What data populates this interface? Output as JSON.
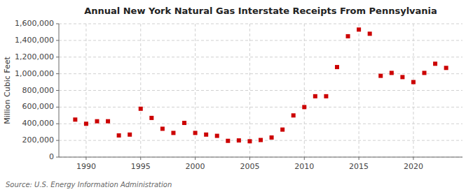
{
  "chart_data": {
    "type": "scatter",
    "title": "Annual New York Natural Gas Interstate Receipts From Pennsylvania",
    "ylabel": "Million Cubic Feet",
    "annotations": [
      "Source: U.S. Energy Information Administration"
    ],
    "x": [
      1989,
      1990,
      1991,
      1992,
      1993,
      1994,
      1995,
      1996,
      1997,
      1998,
      1999,
      2000,
      2001,
      2002,
      2003,
      2004,
      2005,
      2006,
      2007,
      2008,
      2009,
      2010,
      2011,
      2012,
      2013,
      2014,
      2015,
      2016,
      2017,
      2018,
      2019,
      2020,
      2021,
      2022,
      2023
    ],
    "values": [
      450000,
      400000,
      430000,
      430000,
      260000,
      270000,
      580000,
      470000,
      340000,
      290000,
      410000,
      290000,
      270000,
      255000,
      195000,
      200000,
      190000,
      205000,
      235000,
      330000,
      500000,
      600000,
      730000,
      730000,
      1080000,
      1450000,
      1530000,
      1480000,
      975000,
      1010000,
      960000,
      900000,
      1010000,
      1120000,
      1070000
    ],
    "color": "#cc0000",
    "marker": "square",
    "grid": true,
    "xlim": [
      1987.5,
      2024.5
    ],
    "xticks": [
      1990,
      1995,
      2000,
      2005,
      2010,
      2015,
      2020
    ],
    "ylim": [
      0,
      1600000
    ],
    "yticks": [
      0,
      {
        "value": 200000,
        "label": "200,000"
      },
      {
        "value": 400000,
        "label": "400,000"
      },
      {
        "value": 600000,
        "label": "600,000"
      },
      {
        "value": 800000,
        "label": "800,000"
      },
      {
        "value": 1000000,
        "label": "1,000,000"
      },
      {
        "value": 1200000,
        "label": "1,200,000"
      },
      {
        "value": 1400000,
        "label": "1,400,000"
      },
      {
        "value": 1600000,
        "label": "1,600,000"
      }
    ]
  }
}
